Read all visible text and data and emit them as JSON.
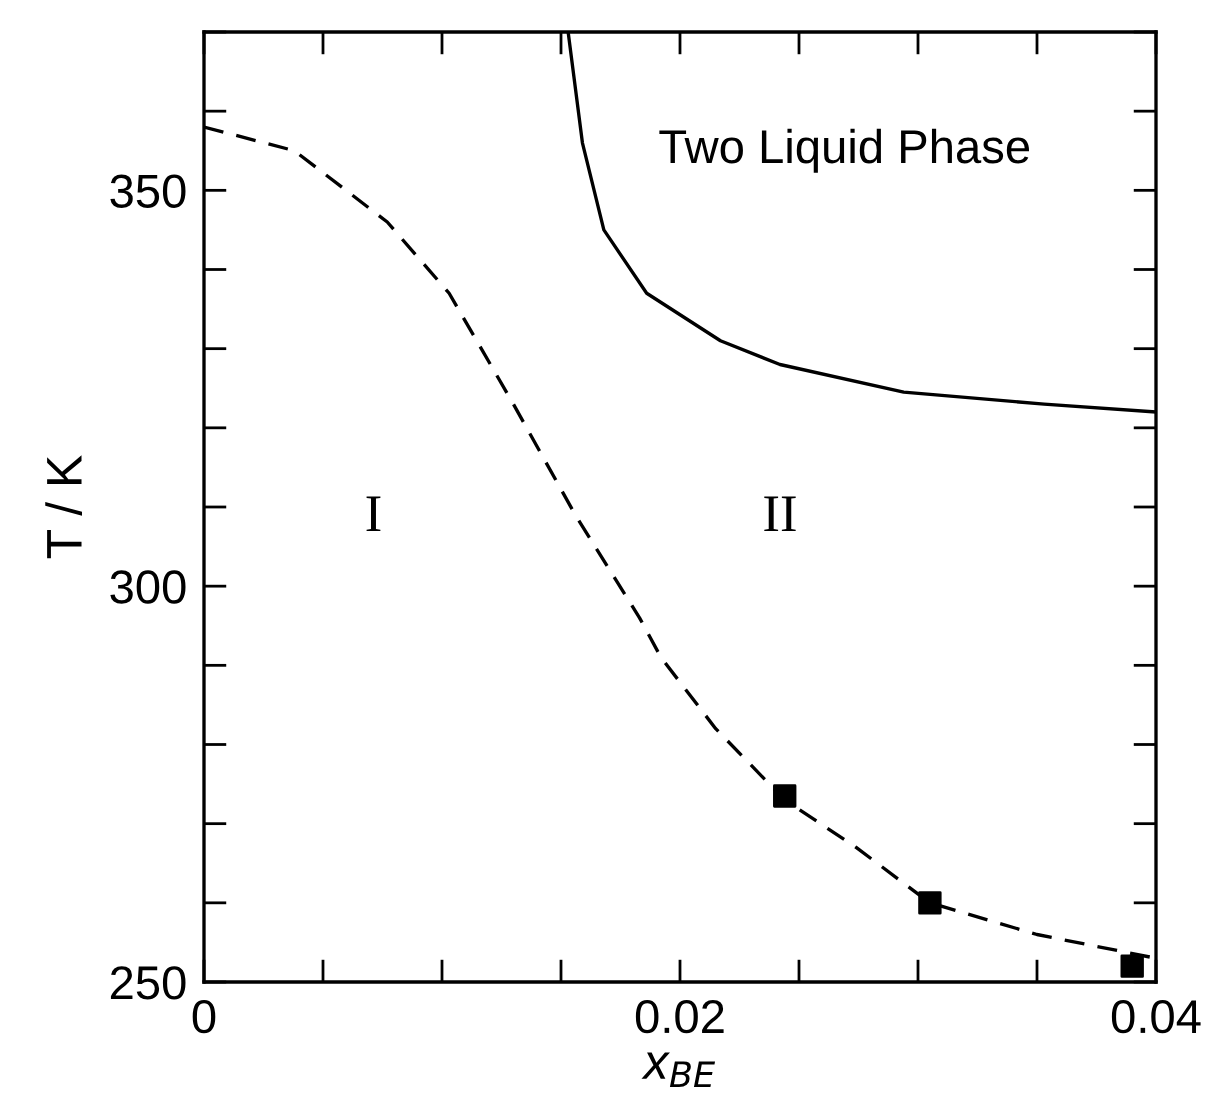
{
  "chart_data": {
    "type": "line",
    "xlabel": "x$_{BE}$",
    "ylabel": "T / K",
    "series": [
      {
        "color": "#000000",
        "line_style": "dashed",
        "marker": "none",
        "x": [
          0,
          0.0038,
          0.0077,
          0.0103,
          0.013,
          0.0156,
          0.0183,
          0.0192,
          0.0215,
          0.0244,
          0.0274,
          0.0305,
          0.035,
          0.04
        ],
        "values": [
          358,
          355,
          346,
          337,
          323,
          309,
          296,
          291,
          282,
          273,
          267,
          260,
          256,
          253
        ]
      },
      {
        "type": "scatter",
        "color": "#000000",
        "marker": "square",
        "x": [
          0.0244,
          0.0305,
          0.039
        ],
        "values": [
          273.5,
          260,
          252
        ]
      },
      {
        "color": "#000000",
        "line_style": "solid",
        "marker": "none",
        "x": [
          0.0153,
          0.0159,
          0.0168,
          0.0186,
          0.0217,
          0.0242,
          0.0294,
          0.0353,
          0.04
        ],
        "values": [
          370,
          356,
          345,
          337,
          331,
          328,
          324.5,
          323,
          322
        ]
      }
    ],
    "annotations": [
      "Two Liquid Phase",
      "I",
      "II"
    ],
    "xlim": [
      0,
      0.04
    ],
    "ylim": [
      250,
      370
    ],
    "xticks": [
      0,
      {
        "value": 0.005,
        "label": null
      },
      {
        "value": 0.01,
        "label": null
      },
      {
        "value": 0.015,
        "label": null
      },
      0.02,
      {
        "value": 0.025,
        "label": null
      },
      {
        "value": 0.03,
        "label": null
      },
      {
        "value": 0.035,
        "label": null
      },
      0.04
    ],
    "yticks": [
      250,
      {
        "value": 260,
        "label": null
      },
      {
        "value": 270,
        "label": null
      },
      {
        "value": 280,
        "label": null
      },
      {
        "value": 290,
        "label": null
      },
      300,
      {
        "value": 310,
        "label": null
      },
      {
        "value": 320,
        "label": null
      },
      {
        "value": 330,
        "label": null
      },
      {
        "value": 340,
        "label": null
      },
      350,
      {
        "value": 360,
        "label": null
      },
      {
        "value": 370,
        "label": null
      }
    ],
    "grid": false,
    "legend": false
  }
}
